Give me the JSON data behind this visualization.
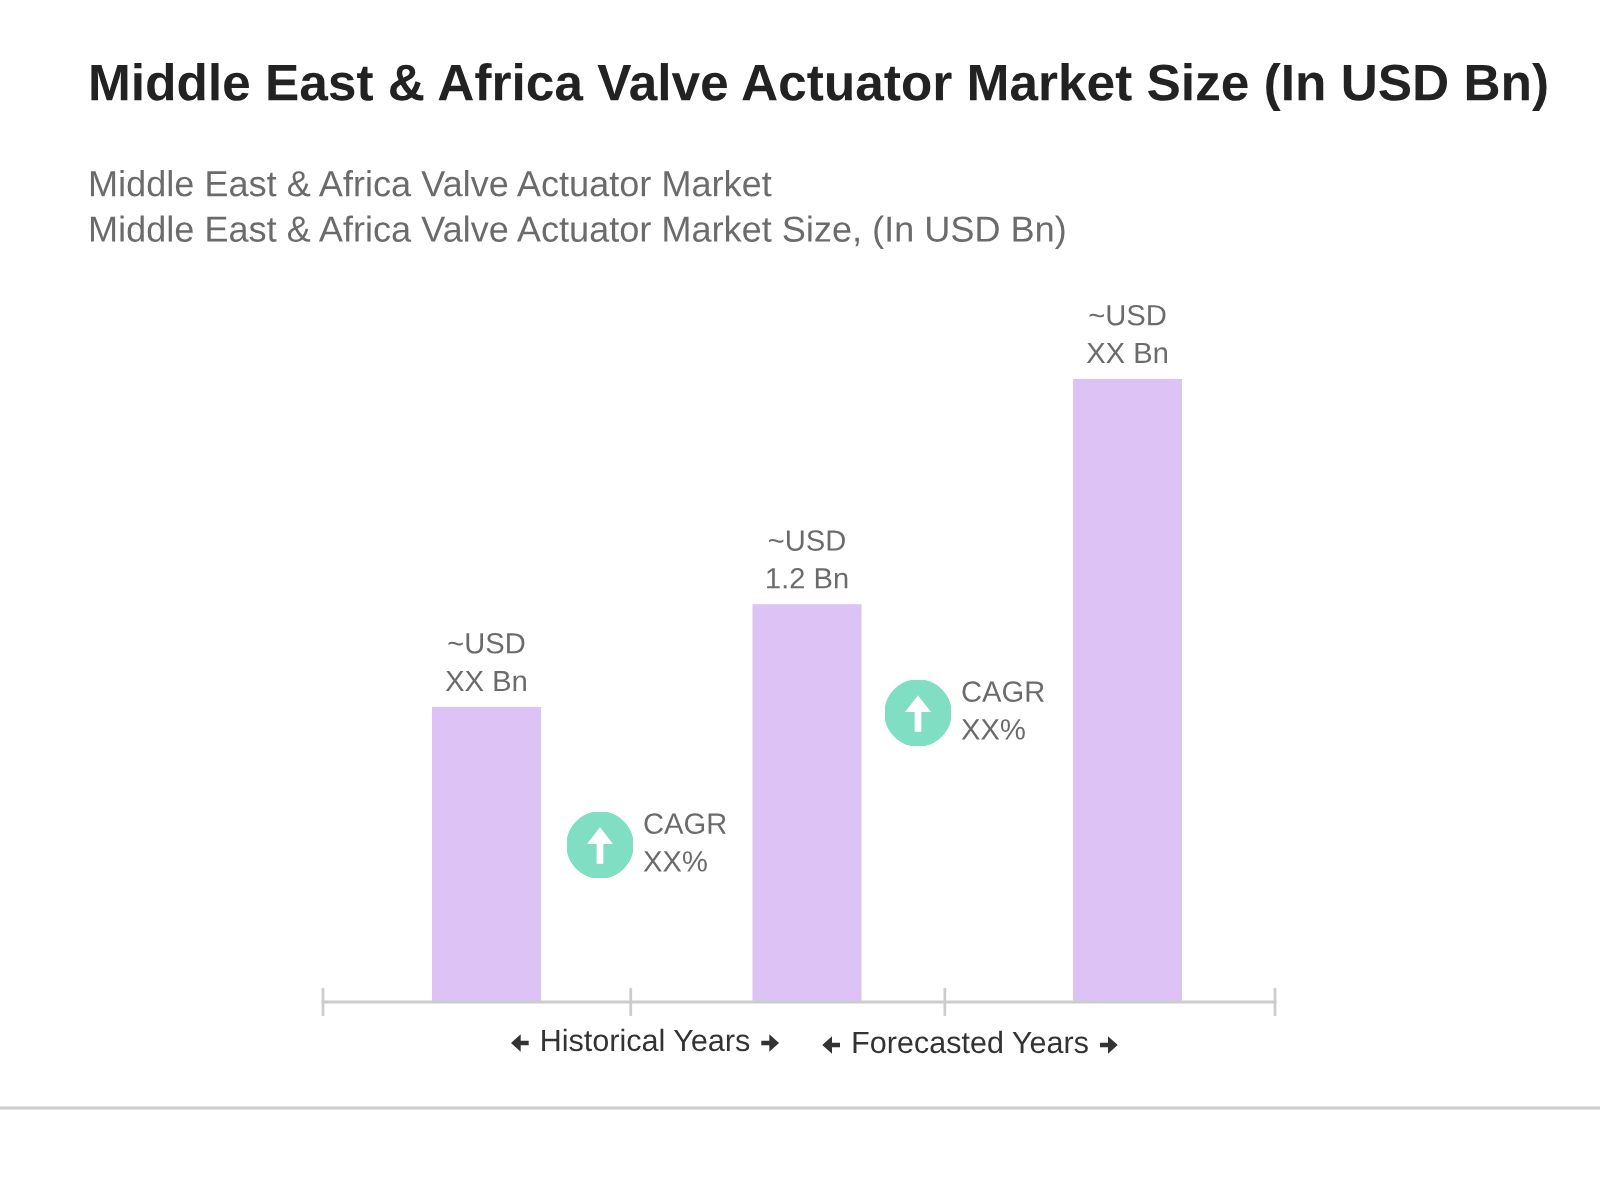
{
  "chart_data": {
    "type": "bar",
    "title": "Middle East & Africa Valve Actuator Market Size (In USD Bn)",
    "subtitle": "Middle East & Africa Valve Actuator Market\nMiddle East & Africa Valve Actuator Market Size, (In USD Bn)",
    "categories": [
      null,
      null,
      null
    ],
    "values": [
      0.89,
      1.2,
      1.88
    ],
    "color": "#dcc2f5",
    "value_labels": [
      "~USD\nXX Bn",
      "~USD\n1.2 Bn",
      "~USD\nXX Bn"
    ],
    "annotations": [
      "CAGR\nXX%",
      "CAGR\nXX%",
      "Historical Years",
      "Forecasted Years"
    ],
    "grid": false,
    "legend": false
  }
}
